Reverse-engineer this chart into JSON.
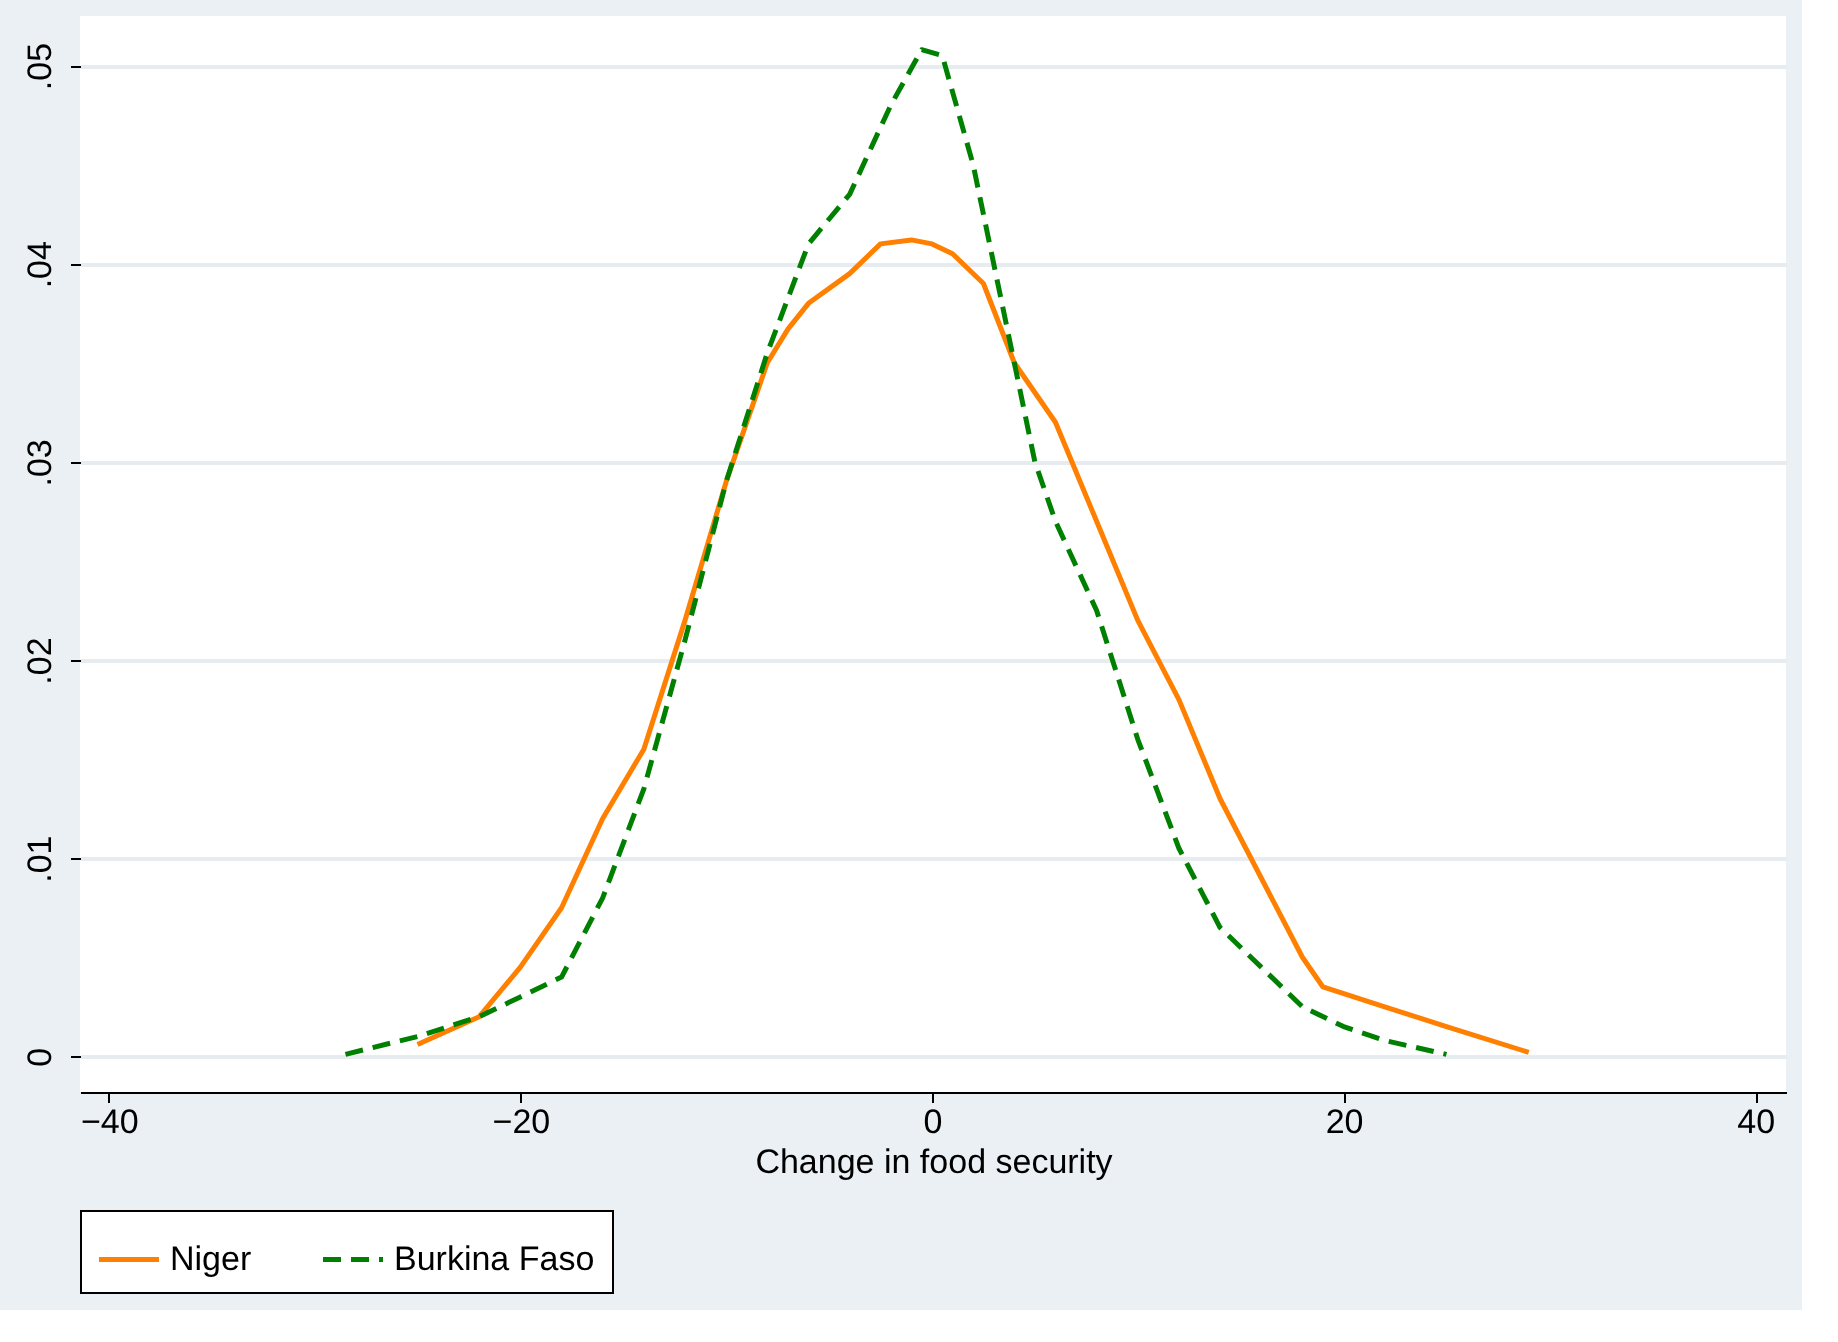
{
  "chart_data": {
    "type": "line",
    "xlabel": "Change in food security",
    "xlim": [
      -41.4,
      41.5
    ],
    "xticks": [
      -40,
      -20,
      0,
      20,
      40
    ],
    "ylim": [
      -0.0018,
      0.0525
    ],
    "yticks": [
      {
        "value": 0,
        "label": "0"
      },
      {
        "value": 0.01,
        "label": ".01"
      },
      {
        "value": 0.02,
        "label": ".02"
      },
      {
        "value": 0.03,
        "label": ".03"
      },
      {
        "value": 0.04,
        "label": ".04"
      },
      {
        "value": 0.05,
        "label": ".05"
      }
    ],
    "grid": "y",
    "legend": "bottom",
    "series": [
      {
        "name": "Niger",
        "color": "#ff8000",
        "line_style": "solid",
        "x": [
          -25,
          -22,
          -20,
          -18,
          -16,
          -14,
          -12,
          -10,
          -8,
          -7,
          -6,
          -4,
          -2.5,
          -1,
          0,
          1,
          2.5,
          4,
          6,
          8,
          10,
          12,
          14,
          16,
          18,
          19,
          22,
          25,
          29
        ],
        "values": [
          0.0006,
          0.002,
          0.0045,
          0.0075,
          0.012,
          0.0155,
          0.022,
          0.029,
          0.035,
          0.0367,
          0.038,
          0.0395,
          0.041,
          0.0412,
          0.041,
          0.0405,
          0.039,
          0.035,
          0.032,
          0.027,
          0.022,
          0.018,
          0.013,
          0.009,
          0.005,
          0.0035,
          0.0025,
          0.0015,
          0.0002
        ]
      },
      {
        "name": "Burkina Faso",
        "color": "#008000",
        "line_style": "dashed",
        "x": [
          -28.5,
          -25,
          -22,
          -20,
          -18,
          -16,
          -14,
          -12,
          -10,
          -8,
          -6,
          -4,
          -2,
          -0.5,
          0.5,
          2,
          4,
          5,
          6,
          8,
          10,
          12,
          14,
          16,
          18,
          20,
          22,
          25
        ],
        "values": [
          0.0001,
          0.001,
          0.002,
          0.003,
          0.004,
          0.008,
          0.0135,
          0.021,
          0.029,
          0.0355,
          0.041,
          0.0435,
          0.048,
          0.0508,
          0.0505,
          0.045,
          0.035,
          0.03,
          0.027,
          0.0225,
          0.016,
          0.0105,
          0.0065,
          0.0045,
          0.0025,
          0.0015,
          0.0008,
          0.0001
        ]
      }
    ]
  }
}
